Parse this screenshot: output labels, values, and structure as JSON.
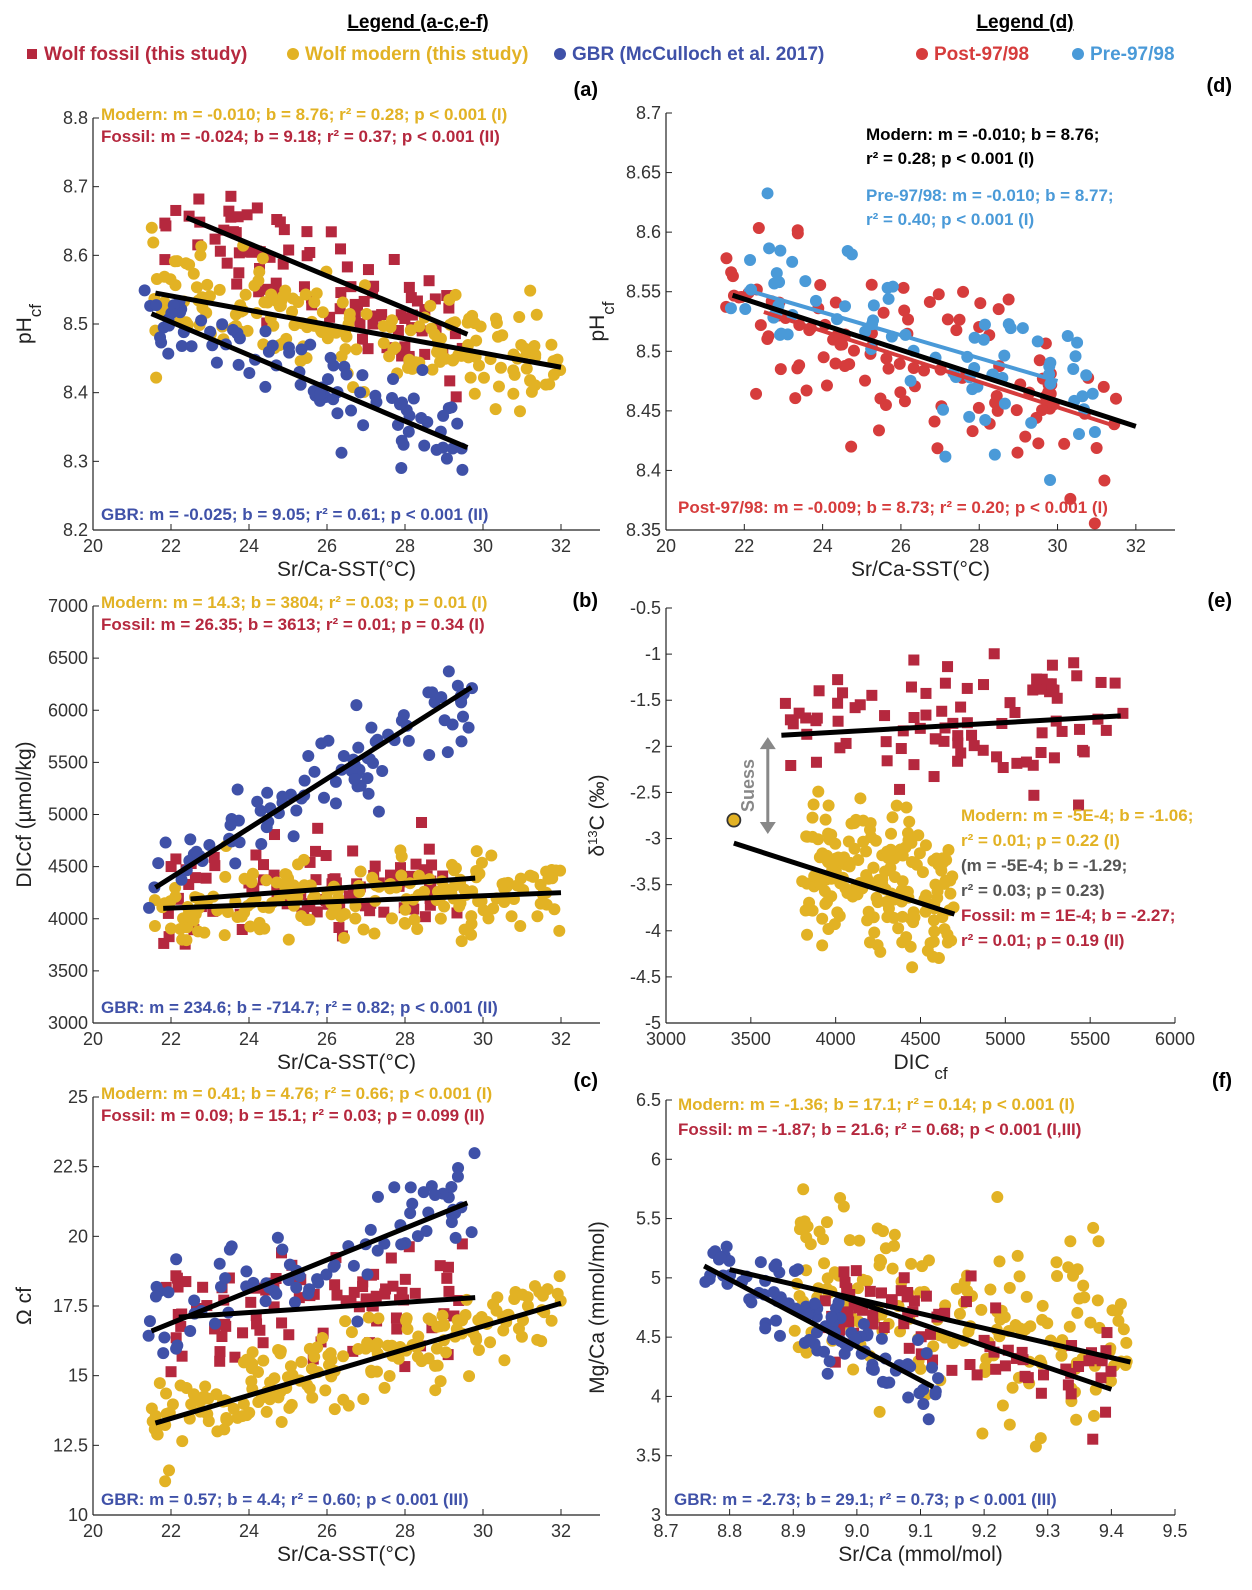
{
  "colors": {
    "fossil": "#b5283e",
    "modern": "#e2b224",
    "gbr": "#3f51a8",
    "post": "#d63c3c",
    "pre": "#4a9ad8",
    "fit": "#000000",
    "black_text": "#000000",
    "grey_text": "#555555",
    "suess_arrow": "#888888"
  },
  "legend": {
    "title_left": "Legend (a-c,e-f)",
    "title_right": "Legend (d)",
    "items_left": [
      {
        "label": "Wolf fossil (this study)",
        "marker": "square",
        "color": "fossil"
      },
      {
        "label": "Wolf modern (this study)",
        "marker": "circle",
        "color": "modern"
      },
      {
        "label": "GBR (McCulloch et al. 2017)",
        "marker": "circle",
        "color": "gbr"
      }
    ],
    "items_right": [
      {
        "label": "Post-97/98",
        "marker": "circle",
        "color": "post"
      },
      {
        "label": "Pre-97/98",
        "marker": "circle",
        "color": "pre"
      }
    ]
  },
  "chart_data": [
    {
      "id": "a",
      "panel_label": "(a)",
      "type": "scatter",
      "xlabel": "Sr/Ca-SST(°C)",
      "ylabel": "pH",
      "ylabel_sub": "cf",
      "xlim": [
        20,
        33
      ],
      "ylim": [
        8.2,
        8.8
      ],
      "xticks": [
        "20",
        "22",
        "24",
        "26",
        "28",
        "30",
        "32"
      ],
      "yticks": [
        "8.2",
        "8.3",
        "8.4",
        "8.5",
        "8.6",
        "8.7",
        "8.8"
      ],
      "annotations": [
        {
          "text": "Modern: m = -0.010; b = 8.76; r² = 0.28; p < 0.001 (I)",
          "color": "modern",
          "pos": "top1"
        },
        {
          "text": "Fossil: m = -0.024; b = 9.18; r²  = 0.37; p < 0.001 (II)",
          "color": "fossil",
          "pos": "top2"
        },
        {
          "text": "GBR: m = -0.025; b = 9.05; r² = 0.61; p < 0.001 (II)",
          "color": "gbr",
          "pos": "bottom"
        }
      ],
      "series": [
        {
          "name": "Wolf fossil",
          "color": "fossil",
          "marker": "square",
          "n": 95,
          "x": [
            21.8,
            29.5
          ],
          "y_fit": [
            8.66,
            8.48
          ],
          "noise": 0.04
        },
        {
          "name": "Wolf modern",
          "color": "modern",
          "marker": "circle",
          "n": 190,
          "x": [
            21.5,
            32.0
          ],
          "y_fit": [
            8.545,
            8.44
          ],
          "noise": 0.035
        },
        {
          "name": "GBR",
          "color": "gbr",
          "marker": "circle",
          "n": 90,
          "x": [
            21.3,
            29.7
          ],
          "y_fit": [
            8.52,
            8.32
          ],
          "noise": 0.03
        }
      ],
      "fits": [
        {
          "x": [
            22.4,
            29.6
          ],
          "y": [
            8.655,
            8.485
          ]
        },
        {
          "x": [
            21.6,
            32.0
          ],
          "y": [
            8.545,
            8.437
          ]
        },
        {
          "x": [
            21.5,
            29.6
          ],
          "y": [
            8.515,
            8.32
          ]
        }
      ]
    },
    {
      "id": "d",
      "panel_label": "(d)",
      "type": "scatter",
      "xlabel": "Sr/Ca-SST(°C)",
      "ylabel": "pH",
      "ylabel_sub": "cf",
      "xlim": [
        20,
        33
      ],
      "ylim": [
        8.35,
        8.7
      ],
      "xticks": [
        "20",
        "22",
        "24",
        "26",
        "28",
        "30",
        "32"
      ],
      "yticks": [
        "8.35",
        "8.4",
        "8.45",
        "8.5",
        "8.55",
        "8.6",
        "8.65",
        "8.7"
      ],
      "annotations": [
        {
          "text": "Modern: m = -0.010; b = 8.76;",
          "color": "black_text",
          "pos": "r1"
        },
        {
          "text": "r² = 0.28; p < 0.001 (I)",
          "color": "black_text",
          "pos": "r2"
        },
        {
          "text": "Pre-97/98: m = -0.010; b = 8.77;",
          "color": "pre",
          "pos": "r3"
        },
        {
          "text": "r²  = 0.40; p < 0.001 (I)",
          "color": "pre",
          "pos": "r4"
        },
        {
          "text": "Post-97/98: m = -0.009; b = 8.73; r² = 0.20; p < 0.001 (I)",
          "color": "post",
          "pos": "bottom"
        }
      ],
      "series": [
        {
          "name": "Post-97/98",
          "color": "post",
          "marker": "circle",
          "n": 120,
          "x": [
            21.5,
            31.5
          ],
          "y_fit": [
            8.535,
            8.44
          ],
          "noise": 0.035
        },
        {
          "name": "Pre-97/98",
          "color": "pre",
          "marker": "circle",
          "n": 80,
          "x": [
            21.6,
            31.0
          ],
          "y_fit": [
            8.55,
            8.46
          ],
          "noise": 0.03
        }
      ],
      "fits": [
        {
          "x": [
            22.5,
            31.5
          ],
          "y": [
            8.533,
            8.437
          ],
          "color": "post",
          "width": 4
        },
        {
          "x": [
            22.0,
            30.0
          ],
          "y": [
            8.552,
            8.475
          ],
          "color": "pre",
          "width": 4
        },
        {
          "x": [
            21.7,
            32.0
          ],
          "y": [
            8.547,
            8.437
          ],
          "color": "fit",
          "width": 5
        }
      ]
    },
    {
      "id": "b",
      "panel_label": "(b)",
      "type": "scatter",
      "xlabel": "Sr/Ca-SST(°C)",
      "ylabel": "DICcf  (µmol/kg)",
      "xlim": [
        20,
        33
      ],
      "ylim": [
        3000,
        7000
      ],
      "xticks": [
        "20",
        "22",
        "24",
        "26",
        "28",
        "30",
        "32"
      ],
      "yticks": [
        "3000",
        "3500",
        "4000",
        "4500",
        "5000",
        "5500",
        "6000",
        "6500",
        "7000"
      ],
      "annotations": [
        {
          "text": "Modern: m = 14.3; b = 3804; r² = 0.03; p = 0.01 (I)",
          "color": "modern",
          "pos": "top1"
        },
        {
          "text": "Fossil: m = 26.35; b = 3613; r² = 0.01; p = 0.34 (I)",
          "color": "fossil",
          "pos": "top2"
        },
        {
          "text": "GBR: m = 234.6; b = -714.7; r²  = 0.82; p < 0.001 (II)",
          "color": "gbr",
          "pos": "bottom"
        }
      ],
      "series": [
        {
          "name": "Wolf fossil",
          "color": "fossil",
          "marker": "square",
          "n": 90,
          "x": [
            21.8,
            29.5
          ],
          "y_fit": [
            4180,
            4400
          ],
          "noise": 230
        },
        {
          "name": "Wolf modern",
          "color": "modern",
          "marker": "circle",
          "n": 190,
          "x": [
            21.5,
            32.0
          ],
          "y_fit": [
            4100,
            4260
          ],
          "noise": 180
        },
        {
          "name": "GBR",
          "color": "gbr",
          "marker": "circle",
          "n": 90,
          "x": [
            21.4,
            29.8
          ],
          "y_fit": [
            4300,
            6220
          ],
          "noise": 220
        }
      ],
      "fits": [
        {
          "x": [
            21.6,
            29.7
          ],
          "y": [
            4300,
            6220
          ]
        },
        {
          "x": [
            22.5,
            29.8
          ],
          "y": [
            4190,
            4390
          ]
        },
        {
          "x": [
            21.8,
            32.0
          ],
          "y": [
            4100,
            4250
          ]
        }
      ]
    },
    {
      "id": "e",
      "panel_label": "(e)",
      "type": "scatter",
      "xlabel": "DIC",
      "xlabel_sub": "cf",
      "ylabel": "δ13C (‰)",
      "xlim": [
        3000,
        6000
      ],
      "ylim": [
        -5,
        -0.5
      ],
      "xticks": [
        "3000",
        "3500",
        "4000",
        "4500",
        "5000",
        "5500",
        "6000"
      ],
      "yticks": [
        "-5",
        "-4.5",
        "-4",
        "-3.5",
        "-3",
        "-2.5",
        "-2",
        "-1.5",
        "-1",
        "-0.5"
      ],
      "suess_label": "Suess",
      "annotations": [
        {
          "text": "Modern: m = -5E-4; b = -1.06;",
          "color": "modern",
          "pos": "e1"
        },
        {
          "text": "r² = 0.01; p = 0.22 (I)",
          "color": "modern",
          "pos": "e2"
        },
        {
          "text": "(m = -5E-4; b = -1.29;",
          "color": "grey_text",
          "pos": "e3"
        },
        {
          "text": "r² = 0.03; p = 0.23)",
          "color": "grey_text",
          "pos": "e4"
        },
        {
          "text": "Fossil: m = 1E-4; b = -2.27;",
          "color": "fossil",
          "pos": "e5"
        },
        {
          "text": "r² = 0.01; p = 0.19 (II)",
          "color": "fossil",
          "pos": "e6"
        }
      ],
      "series": [
        {
          "name": "Wolf fossil",
          "color": "fossil",
          "marker": "square",
          "n": 90,
          "x": [
            3700,
            5700
          ],
          "y_fit": [
            -1.85,
            -1.7
          ],
          "noise": 0.35
        },
        {
          "name": "Wolf modern",
          "color": "modern",
          "marker": "circle",
          "n": 190,
          "x": [
            3800,
            4700
          ],
          "y_fit": [
            -3.3,
            -3.7
          ],
          "noise": 0.4
        }
      ],
      "fits": [
        {
          "x": [
            3680,
            5680
          ],
          "y": [
            -1.88,
            -1.67
          ]
        },
        {
          "x": [
            3400,
            4700
          ],
          "y": [
            -3.05,
            -3.82
          ]
        }
      ],
      "outlier": {
        "x": 3400,
        "y": -2.8
      }
    },
    {
      "id": "c",
      "panel_label": "(c)",
      "type": "scatter",
      "xlabel": "Sr/Ca-SST(°C)",
      "ylabel": "Ω cf",
      "xlim": [
        20,
        33
      ],
      "ylim": [
        10,
        25
      ],
      "xticks": [
        "20",
        "22",
        "24",
        "26",
        "28",
        "30",
        "32"
      ],
      "yticks": [
        "10",
        "12.5",
        "15",
        "17.5",
        "20",
        "22.5",
        "25"
      ],
      "annotations": [
        {
          "text": "Modern: m = 0.41; b = 4.76; r² = 0.66; p < 0.001 (I)",
          "color": "modern",
          "pos": "top1"
        },
        {
          "text": "Fossil: m = 0.09; b = 15.1; r² = 0.03; p = 0.099 (II)",
          "color": "fossil",
          "pos": "top2"
        },
        {
          "text": "GBR: m = 0.57; b = 4.4; r²  = 0.60; p < 0.001 (III)",
          "color": "gbr",
          "pos": "bottom"
        }
      ],
      "series": [
        {
          "name": "Wolf fossil",
          "color": "fossil",
          "marker": "square",
          "n": 90,
          "x": [
            21.8,
            29.5
          ],
          "y_fit": [
            17.2,
            17.8
          ],
          "noise": 0.9
        },
        {
          "name": "Wolf modern",
          "color": "modern",
          "marker": "circle",
          "n": 190,
          "x": [
            21.5,
            32.0
          ],
          "y_fit": [
            13.4,
            17.6
          ],
          "noise": 0.7
        },
        {
          "name": "GBR",
          "color": "gbr",
          "marker": "circle",
          "n": 80,
          "x": [
            21.4,
            29.8
          ],
          "y_fit": [
            16.7,
            21.2
          ],
          "noise": 0.9
        }
      ],
      "fits": [
        {
          "x": [
            21.5,
            29.6
          ],
          "y": [
            16.6,
            21.2
          ]
        },
        {
          "x": [
            22.2,
            29.8
          ],
          "y": [
            17.1,
            17.8
          ]
        },
        {
          "x": [
            21.6,
            32.0
          ],
          "y": [
            13.3,
            17.6
          ]
        }
      ]
    },
    {
      "id": "f",
      "panel_label": "(f)",
      "type": "scatter",
      "xlabel": "Sr/Ca (mmol/mol)",
      "ylabel": "Mg/Ca (mmol/mol)",
      "xlim": [
        8.7,
        9.5
      ],
      "ylim": [
        3,
        6.5
      ],
      "xticks": [
        "8.7",
        "8.8",
        "8.9",
        "9.0",
        "9.1",
        "9.2",
        "9.3",
        "9.4",
        "9.5"
      ],
      "yticks": [
        "3",
        "3.5",
        "4",
        "4.5",
        "5",
        "5.5",
        "6",
        "6.5"
      ],
      "annotations": [
        {
          "text": "Modern: m = -1.36; b = 17.1; r² = 0.14; p < 0.001 (I)",
          "color": "modern",
          "pos": "top1"
        },
        {
          "text": "Fossil: m = -1.87; b = 21.6; r² = 0.68; p < 0.001 (I,III)",
          "color": "fossil",
          "pos": "top2"
        },
        {
          "text": "GBR: m = -2.73; b = 29.1; r² = 0.73; p < 0.001 (III)",
          "color": "gbr",
          "pos": "bottom"
        }
      ],
      "series": [
        {
          "name": "Wolf modern",
          "color": "modern",
          "marker": "circle",
          "n": 180,
          "x": [
            8.9,
            9.43
          ],
          "y_fit": [
            5.05,
            4.3
          ],
          "noise": 0.4
        },
        {
          "name": "Wolf fossil",
          "color": "fossil",
          "marker": "square",
          "n": 80,
          "x": [
            8.95,
            9.4
          ],
          "y_fit": [
            4.85,
            4.1
          ],
          "noise": 0.22
        },
        {
          "name": "GBR",
          "color": "gbr",
          "marker": "circle",
          "n": 100,
          "x": [
            8.76,
            9.13
          ],
          "y_fit": [
            5.1,
            4.08
          ],
          "noise": 0.18
        }
      ],
      "fits": [
        {
          "x": [
            8.8,
            9.43
          ],
          "y": [
            5.07,
            4.29
          ]
        },
        {
          "x": [
            8.96,
            9.4
          ],
          "y": [
            4.87,
            4.06
          ]
        },
        {
          "x": [
            8.76,
            9.12
          ],
          "y": [
            5.1,
            4.08
          ]
        }
      ]
    }
  ]
}
